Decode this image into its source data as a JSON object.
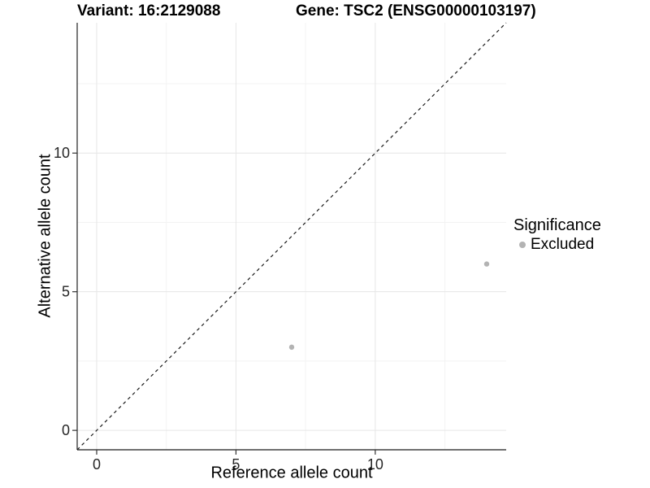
{
  "chart_data": {
    "type": "scatter",
    "titles": [
      "Variant: 16:2129088",
      "Gene: TSC2 (ENSG00000103197)"
    ],
    "xlabel": "Reference allele count",
    "ylabel": "Alternative allele count",
    "xlim": [
      -0.7,
      14.7
    ],
    "ylim": [
      -0.7,
      14.7
    ],
    "x_ticks": [
      0,
      5,
      10
    ],
    "y_ticks": [
      0,
      5,
      10
    ],
    "x_minor_gridlines": [
      2.5,
      7.5,
      12.5
    ],
    "y_minor_gridlines": [
      2.5,
      7.5,
      12.5
    ],
    "grid": "major and minor gridlines, light gray, white panel, no top/right border",
    "series": [
      {
        "name": "Excluded",
        "color": "#b3b3b3",
        "points": [
          {
            "x": 7,
            "y": 3
          },
          {
            "x": 14,
            "y": 6
          }
        ]
      }
    ],
    "reference_line": {
      "type": "identity y=x",
      "style": "dashed",
      "color": "#1a1a1a"
    },
    "legend": {
      "title": "Significance",
      "position": "right",
      "items": [
        {
          "label": "Excluded",
          "color": "#b3b3b3"
        }
      ]
    }
  },
  "colors": {
    "background": "#ffffff",
    "grid_major": "#e6e6e6",
    "grid_minor": "#f3f3f3",
    "axis_line": "#404040",
    "tick_mark": "#333333",
    "tick_label": "#262626",
    "title_text": "#000000",
    "point_excluded": "#b3b3b3",
    "dashed_line": "#1a1a1a"
  }
}
